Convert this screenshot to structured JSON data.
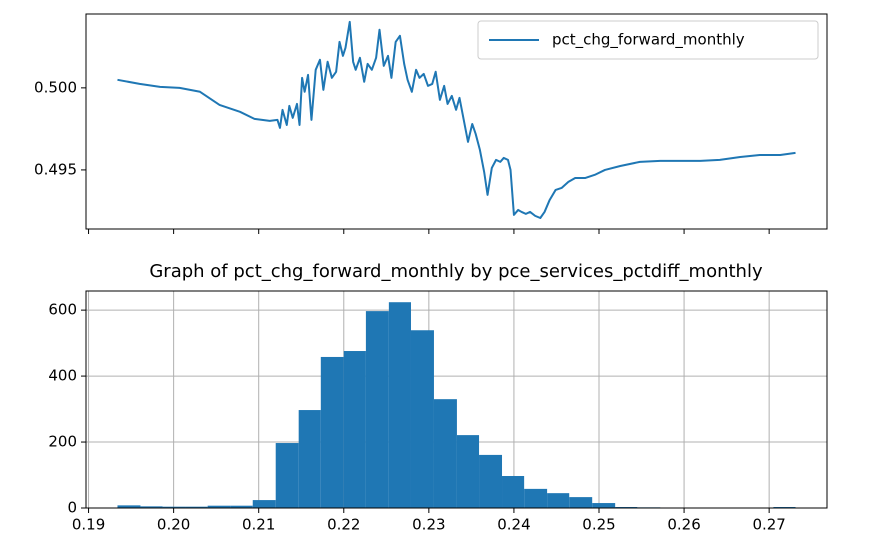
{
  "chart_data": [
    {
      "type": "line",
      "x": [
        0.1934,
        0.196,
        0.1984,
        0.2007,
        0.2031,
        0.2054,
        0.2078,
        0.2095,
        0.2113,
        0.2122,
        0.2125,
        0.2128,
        0.2133,
        0.2136,
        0.214,
        0.2145,
        0.2148,
        0.2151,
        0.2154,
        0.2158,
        0.2162,
        0.2167,
        0.2172,
        0.2176,
        0.2181,
        0.2186,
        0.2191,
        0.2195,
        0.2199,
        0.2202,
        0.2207,
        0.2211,
        0.2214,
        0.2219,
        0.2224,
        0.2228,
        0.2233,
        0.2238,
        0.2242,
        0.2247,
        0.2252,
        0.2256,
        0.2261,
        0.2266,
        0.2271,
        0.2275,
        0.228,
        0.2285,
        0.2289,
        0.2294,
        0.2299,
        0.2304,
        0.2308,
        0.2313,
        0.2318,
        0.2322,
        0.2327,
        0.2332,
        0.2336,
        0.2341,
        0.2346,
        0.2351,
        0.2355,
        0.236,
        0.2365,
        0.2369,
        0.2374,
        0.2379,
        0.2384,
        0.2388,
        0.2393,
        0.2396,
        0.24,
        0.2405,
        0.2409,
        0.2414,
        0.2419,
        0.2425,
        0.2431,
        0.2436,
        0.2442,
        0.2449,
        0.2456,
        0.2464,
        0.2472,
        0.2484,
        0.2495,
        0.2507,
        0.2525,
        0.2548,
        0.2572,
        0.2619,
        0.2642,
        0.2666,
        0.2689,
        0.2713,
        0.2731
      ],
      "series": [
        {
          "name": "pct_chg_forward_monthly",
          "color": "#1f77b4",
          "values": [
            0.50049,
            0.50024,
            0.50006,
            0.5,
            0.49976,
            0.49896,
            0.49854,
            0.49811,
            0.49799,
            0.49805,
            0.49756,
            0.49866,
            0.49774,
            0.4989,
            0.49817,
            0.49902,
            0.49774,
            0.50061,
            0.49976,
            0.50079,
            0.49805,
            0.5011,
            0.50171,
            0.49988,
            0.50159,
            0.50061,
            0.50098,
            0.5028,
            0.50195,
            0.50244,
            0.50402,
            0.50159,
            0.5011,
            0.50183,
            0.50037,
            0.50146,
            0.5011,
            0.50183,
            0.50354,
            0.50134,
            0.50195,
            0.50061,
            0.5028,
            0.50317,
            0.50146,
            0.50049,
            0.49976,
            0.5011,
            0.50061,
            0.50085,
            0.50012,
            0.50024,
            0.50098,
            0.49927,
            0.50012,
            0.49902,
            0.49951,
            0.49866,
            0.49939,
            0.49805,
            0.49671,
            0.4978,
            0.4972,
            0.49622,
            0.49488,
            0.49348,
            0.49512,
            0.49561,
            0.49549,
            0.49573,
            0.49561,
            0.495,
            0.49226,
            0.49256,
            0.49244,
            0.49232,
            0.49244,
            0.4922,
            0.49207,
            0.49244,
            0.49317,
            0.49378,
            0.4939,
            0.49427,
            0.49451,
            0.49451,
            0.4947,
            0.495,
            0.49524,
            0.49549,
            0.49555,
            0.49555,
            0.49561,
            0.49579,
            0.49591,
            0.49591,
            0.49604
          ]
        }
      ],
      "xlim": [
        0.1897,
        0.2768
      ],
      "ylim": [
        0.4914,
        0.5045
      ],
      "yticks": [
        {
          "value": 0.5,
          "label": "0.500"
        },
        0.495
      ],
      "legend": "upper right",
      "grid": false
    },
    {
      "type": "histogram",
      "title": "Graph of pct_chg_forward_monthly by pce_services_pctdiff_monthly",
      "bins": [
        0.1934,
        0.1961,
        0.1987,
        0.2014,
        0.204,
        0.2067,
        0.2093,
        0.212,
        0.2147,
        0.2173,
        0.22,
        0.2226,
        0.2253,
        0.2279,
        0.2306,
        0.2333,
        0.2359,
        0.2386,
        0.2412,
        0.2439,
        0.2465,
        0.2492,
        0.2519,
        0.2545,
        0.2572,
        0.2598,
        0.2625,
        0.2651,
        0.2678,
        0.2705,
        0.2731
      ],
      "values": [
        8,
        5,
        4,
        4,
        7,
        7,
        24,
        197,
        297,
        458,
        476,
        597,
        624,
        539,
        330,
        221,
        161,
        97,
        58,
        45,
        33,
        15,
        3,
        2,
        1,
        1,
        1,
        1,
        1,
        3
      ],
      "color": "#1f77b4",
      "xlim": [
        0.1897,
        0.2768
      ],
      "ylim": [
        0,
        658
      ],
      "xticks": [
        0.19,
        {
          "value": 0.2,
          "label": "0.20"
        },
        0.21,
        0.22,
        0.23,
        0.24,
        0.25,
        0.26,
        0.27
      ],
      "yticks": [
        0,
        200,
        400,
        600
      ],
      "grid": true
    }
  ]
}
